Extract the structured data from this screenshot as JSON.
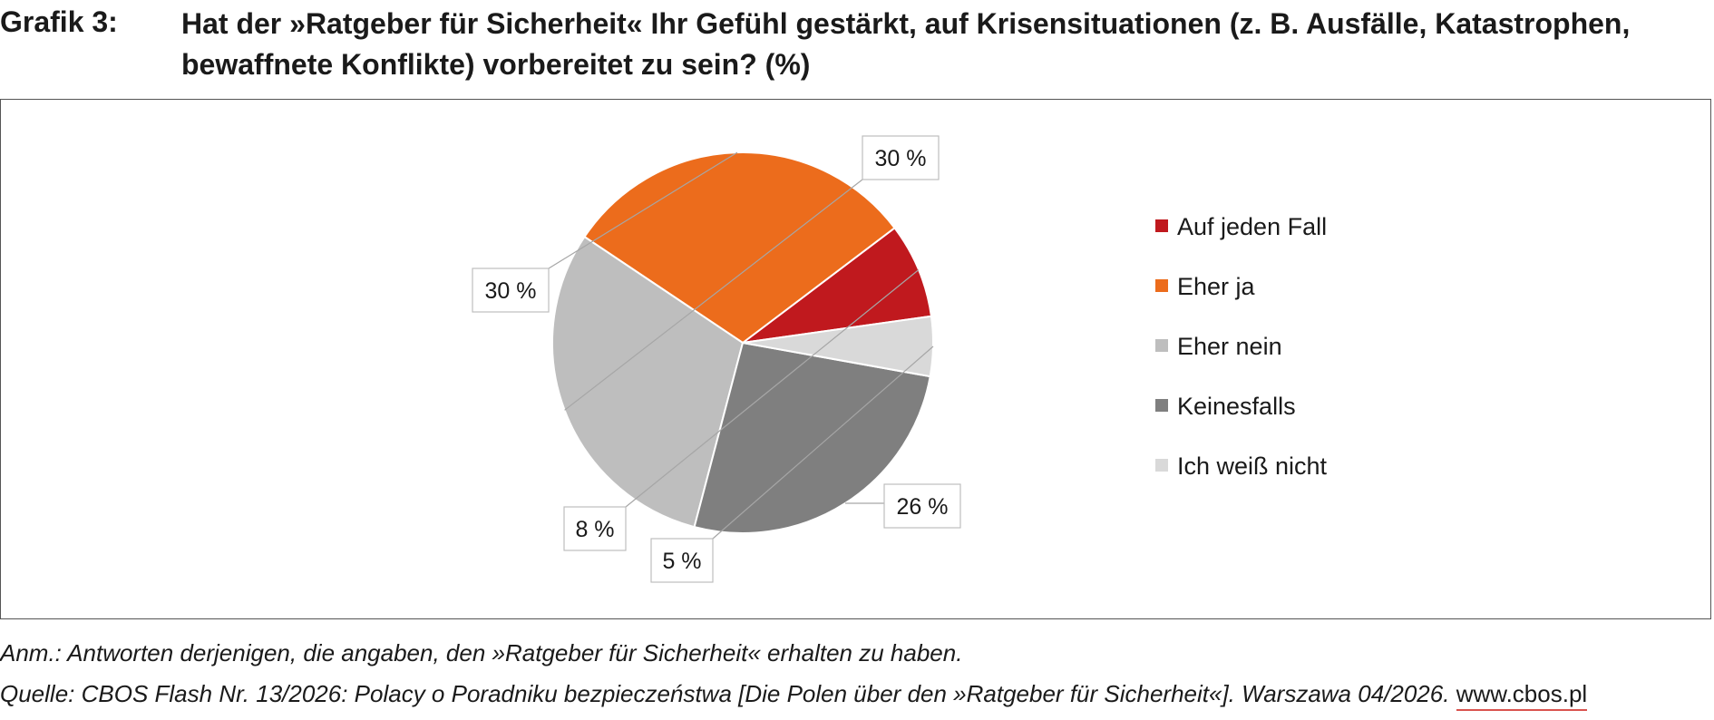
{
  "figure": {
    "number_label": "Grafik 3:",
    "title": "Hat der »Ratgeber für Sicherheit« Ihr Gefühl gestärkt, auf Krisensituationen (z. B. Ausfälle, Katastrophen, bewaffnete Konflikte) vorbereitet zu sein? (%)"
  },
  "notes": {
    "annotation": "Anm.: Antworten derjenigen, die angaben, den »Ratgeber für Sicherheit« erhalten zu haben.",
    "source": "Quelle: CBOS Flash Nr. 13/2026: Polacy o Poradniku bezpieczeństwa [Die Polen über den »Ratgeber für Sicherheit«]. Warszawa 04/2026.",
    "link_text": "www.cbos.pl"
  },
  "chart_data": {
    "type": "pie",
    "title": "Hat der »Ratgeber für Sicherheit« Ihr Gefühl gestärkt, auf Krisensituationen (z. B. Ausfälle, Katastrophen, bewaffnete Konflikte) vorbereitet zu sein? (%)",
    "unit": "%",
    "start_angle_deg": 8,
    "direction": "counterclockwise",
    "legend_position": "right",
    "slices": [
      {
        "label": "Auf jeden Fall",
        "value": 8,
        "display": "8 %",
        "color": "#c0191e"
      },
      {
        "label": "Eher ja",
        "value": 30,
        "display": "30 %",
        "color": "#ec6c1c"
      },
      {
        "label": "Eher nein",
        "value": 30,
        "display": "30 %",
        "color": "#bebebe"
      },
      {
        "label": "Keinesfalls",
        "value": 26,
        "display": "26 %",
        "color": "#7f7f7f"
      },
      {
        "label": "Ich weiß nicht",
        "value": 5,
        "display": "5 %",
        "color": "#d9d9d9"
      }
    ]
  }
}
